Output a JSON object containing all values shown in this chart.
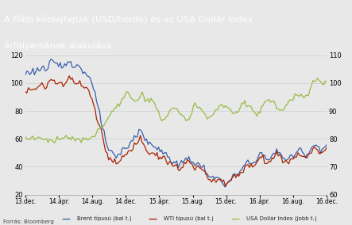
{
  "title_line1": "A főbb kőolajfajták (USD/hordó) és az USA Dollár Index",
  "title_line2": "árfolyamának alakulása",
  "title_bg_color": "#1e3f8f",
  "title_text_color": "#ffffff",
  "source_text": "Forrás: Bloomberg",
  "legend_entries": [
    "Brent típusú (bal t.)",
    "WTI típusú (bal t.)",
    "USA Dollár Index (jobb t.)"
  ],
  "legend_colors": [
    "#3a5faa",
    "#aa2200",
    "#99bb44"
  ],
  "left_ylim": [
    20,
    120
  ],
  "right_ylim": [
    60,
    110
  ],
  "left_yticks": [
    20,
    40,
    60,
    80,
    100,
    120
  ],
  "right_yticks": [
    60,
    70,
    80,
    90,
    100,
    110
  ],
  "xtick_labels": [
    "13.dec.",
    "14.ápr.",
    "14.aug.",
    "14.dec.",
    "15.ápr.",
    "15.aug.",
    "15.dec.",
    "16.ápr.",
    "16.aug.",
    "16.dec."
  ],
  "bg_color": "#e8e8e8",
  "grid_color": "#cccccc",
  "n_points": 200
}
